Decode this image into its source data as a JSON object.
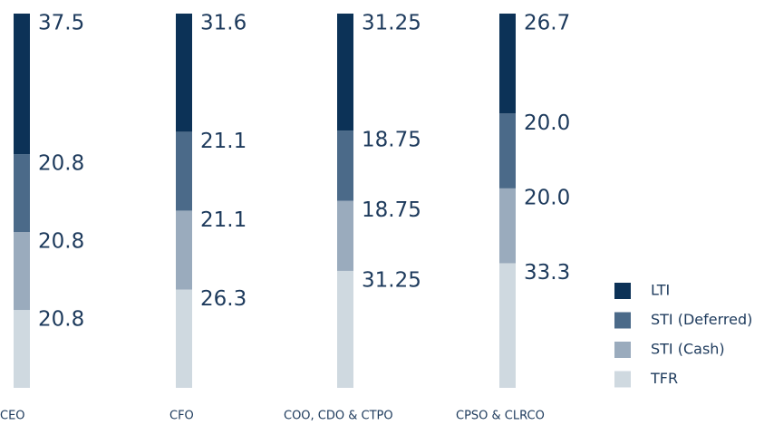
{
  "chart_data": {
    "type": "stacked_bar",
    "categories": [
      "CEO",
      "CFO",
      "COO, CDO & CTPO",
      "CPSO & CLRCO"
    ],
    "series": [
      {
        "name": "TFR",
        "color": "#cfd9e0",
        "values": [
          20.8,
          26.3,
          31.25,
          33.3
        ]
      },
      {
        "name": "STI (Cash)",
        "color": "#9aabbd",
        "values": [
          20.8,
          21.1,
          18.75,
          20.0
        ],
        "value_labels": [
          "20.8",
          "21.1",
          "18.75",
          "20.0"
        ]
      },
      {
        "name": "STI (Deferred)",
        "color": "#4b6a89",
        "values": [
          20.8,
          21.1,
          18.75,
          20.0
        ],
        "value_labels": [
          "20.8",
          "21.1",
          "18.75",
          "20.0"
        ]
      },
      {
        "name": "LTI",
        "color": "#0c3257",
        "values": [
          37.5,
          31.6,
          31.25,
          26.7
        ]
      }
    ]
  }
}
